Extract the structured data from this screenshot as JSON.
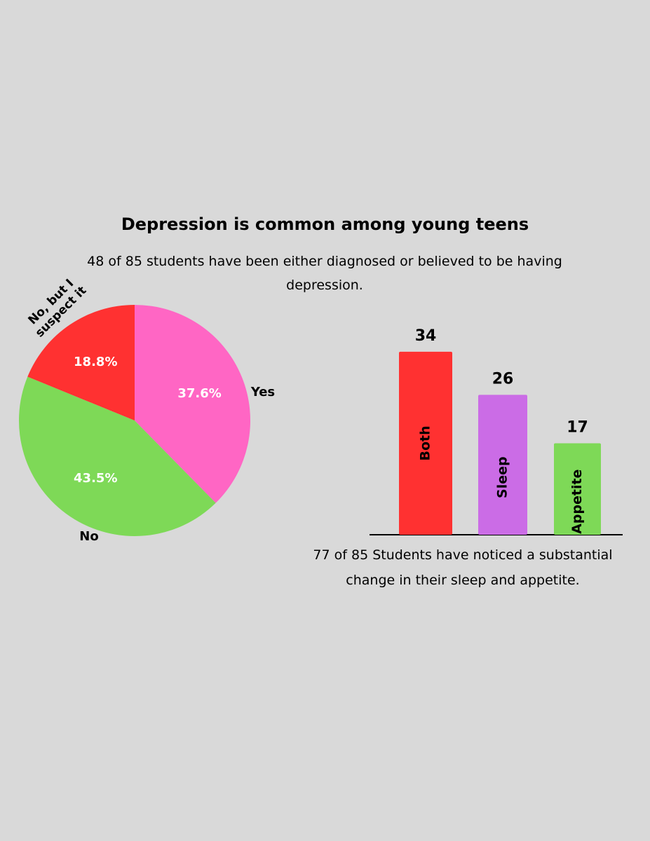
{
  "chart_data": [
    {
      "type": "pie",
      "title": "Depression is common among young teens",
      "subtitle": "48 of 85 students have been either diagnosed or believed to be having depression.",
      "categories": [
        "Yes",
        "No",
        "No, but I suspect it"
      ],
      "values": [
        37.6,
        43.5,
        18.8
      ],
      "value_labels": [
        "37.6%",
        "43.5%",
        "18.8%"
      ],
      "colors": [
        "#ff66c4",
        "#7ed957",
        "#ff3131"
      ]
    },
    {
      "type": "bar",
      "caption": "77 of 85 Students have noticed a substantial change in their sleep and appetite.",
      "categories": [
        "Both",
        "Sleep",
        "Appetite"
      ],
      "values": [
        34,
        26,
        17
      ],
      "colors": [
        "#ff3131",
        "#cb6ce6",
        "#7ed957"
      ]
    }
  ]
}
